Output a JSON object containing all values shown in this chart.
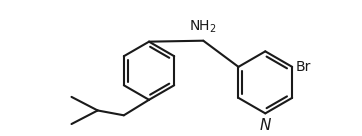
{
  "background_color": "#ffffff",
  "line_color": "#1a1a1a",
  "line_width": 1.5,
  "text_color": "#1a1a1a",
  "font_size_NH2": 10,
  "font_size_Br": 10,
  "font_size_N": 11,
  "figsize": [
    3.62,
    1.36
  ],
  "dpi": 100,
  "NH2_text": "NH$_2$",
  "Br_text": "Br",
  "N_text": "N"
}
